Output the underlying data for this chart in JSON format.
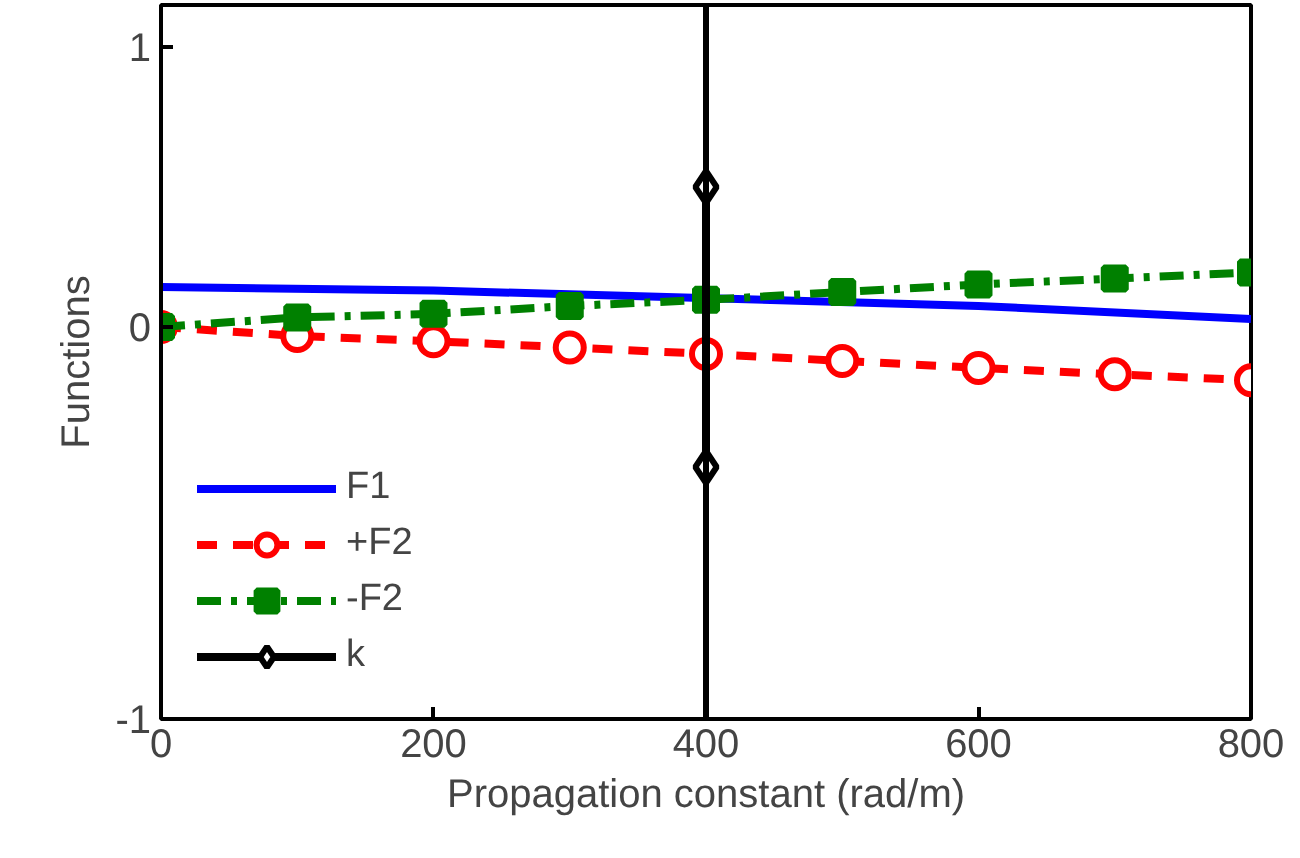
{
  "chart_data": {
    "type": "line",
    "xlabel": "Propagation constant (rad/m)",
    "ylabel": "Functions",
    "xlim": [
      0,
      800
    ],
    "xticks": [
      0,
      200,
      400,
      600,
      800
    ],
    "ylim": [
      -1.4,
      1.15
    ],
    "yticks": [
      1,
      0,
      {
        "value": -1.4,
        "label": "-1"
      }
    ],
    "grid": false,
    "legend": "bottom left",
    "ref_lines": [
      {
        "axis": "x",
        "value": 400,
        "color": "#000000"
      }
    ],
    "series": [
      {
        "name": "F1",
        "color": "#0000ff",
        "marker": "none",
        "line_style": "solid",
        "x": [
          0,
          200,
          300,
          600,
          800
        ],
        "values": [
          0.143,
          0.13,
          0.117,
          0.075,
          0.029
        ]
      },
      {
        "name": "+F2",
        "color": "#ff0000",
        "marker": "circle",
        "line_style": "dashed",
        "x": [
          0,
          100,
          200,
          300,
          400,
          500,
          600,
          700,
          800
        ],
        "values": [
          0,
          -0.032,
          -0.051,
          -0.073,
          -0.096,
          -0.121,
          -0.146,
          -0.169,
          -0.19
        ]
      },
      {
        "name": "-F2",
        "color": "#008000",
        "marker": "square",
        "line_style": "dashdot",
        "x": [
          0,
          100,
          200,
          300,
          400,
          500,
          600,
          700,
          800
        ],
        "values": [
          0,
          0.034,
          0.047,
          0.075,
          0.097,
          0.125,
          0.152,
          0.173,
          0.195
        ]
      },
      {
        "name": "k",
        "color": "#000000",
        "marker": "diamond",
        "line_style": "solid",
        "x": [
          400,
          400
        ],
        "values": [
          0.5,
          -0.5
        ]
      }
    ]
  }
}
